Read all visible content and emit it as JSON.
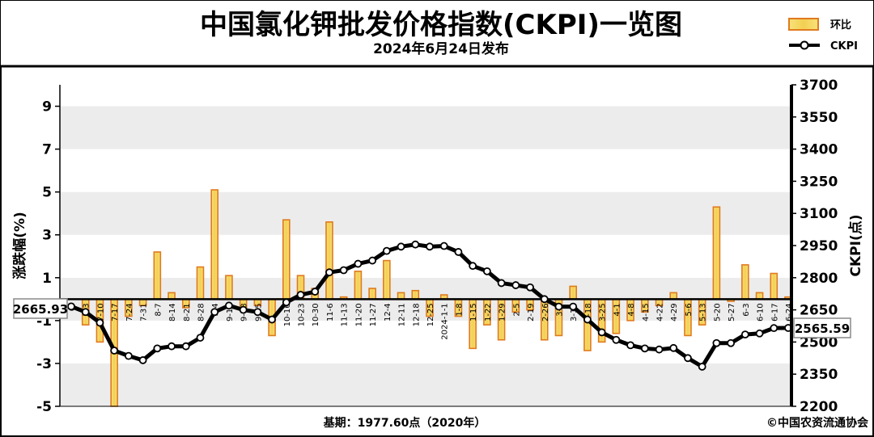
{
  "chart_data": {
    "type": "bar+line",
    "title": "中国氯化钾批发价格指数(CKPI)一览图",
    "subtitle": "2024年6月24日发布",
    "ylabel_left": "涨跌幅(%)",
    "ylabel_right": "CKPI(点)",
    "ylim_left": [
      -5,
      10
    ],
    "ylim_right": [
      2200,
      3700
    ],
    "yticks_left": [
      9,
      7,
      5,
      3,
      1,
      -1,
      -3,
      -5
    ],
    "yticks_right": [
      3700,
      3550,
      3400,
      3250,
      3100,
      2950,
      2800,
      2650,
      2500,
      2350,
      2200
    ],
    "legend": [
      {
        "label": "环比",
        "type": "bar"
      },
      {
        "label": "CKPI",
        "type": "line"
      }
    ],
    "categories": [
      "6-2x",
      "7-3",
      "7-10",
      "7-17",
      "7-24",
      "7-31",
      "8-7",
      "8-14",
      "8-21",
      "8-28",
      "9-4",
      "9-11",
      "9-18",
      "9-25",
      "10-9",
      "10-16",
      "10-23",
      "10-30",
      "11-6",
      "11-13",
      "11-20",
      "11-27",
      "12-4",
      "12-11",
      "12-18",
      "12-25",
      "2024-1-1",
      "1-8",
      "1-15",
      "1-22",
      "1-29",
      "2-5",
      "2-19",
      "2-26",
      "3-4",
      "3-11",
      "3-18",
      "3-25",
      "4-1",
      "4-8",
      "4-15",
      "4-22",
      "4-29",
      "5-6",
      "5-13",
      "5-20",
      "5-27",
      "6-3",
      "6-10",
      "6-17",
      "6-24"
    ],
    "x_labels_shown": [
      "6-",
      "7-3",
      "7-10",
      "7-17",
      "7-24",
      "7-31",
      "8-7",
      "8-14",
      "8-21",
      "8-28",
      "9-4",
      "9-11",
      "9-18",
      "9-25",
      "10-16",
      "10-23",
      "10-30",
      "11-6",
      "11-13",
      "11-20",
      "11-27",
      "12-4",
      "12-11",
      "12-18",
      "12-25",
      "2024-1-1",
      "1-8",
      "1-15",
      "1-22",
      "1-29",
      "2-5",
      "2-19",
      "2-26",
      "3-4",
      "3-11",
      "3-18",
      "3-25",
      "4-1",
      "4-8",
      "4-15",
      "4-22",
      "4-29",
      "5-6",
      "5-13",
      "5-20",
      "5-27",
      "6-3",
      "6-10",
      "6-17",
      "6-24"
    ],
    "series": [
      {
        "name": "环比",
        "type": "bar",
        "values": [
          0,
          -1.2,
          -2.0,
          -5.0,
          -0.8,
          -0.3,
          2.2,
          0.3,
          -0.4,
          1.5,
          5.1,
          1.1,
          -0.5,
          -0.3,
          -1.7,
          3.7,
          1.1,
          0.5,
          3.6,
          0.1,
          1.3,
          0.5,
          1.8,
          0.3,
          0.4,
          -0.8,
          0.2,
          -0.8,
          -2.3,
          -1.2,
          -1.9,
          -0.6,
          -0.5,
          -1.9,
          -1.7,
          0.6,
          -2.4,
          -2.0,
          -1.6,
          -1.0,
          -0.6,
          -0.3,
          0.3,
          -1.7,
          -1.2,
          4.3,
          -0.1,
          1.6,
          0.3,
          1.2,
          0.1
        ]
      },
      {
        "name": "CKPI",
        "type": "line",
        "values": [
          2665.93,
          2640,
          2590,
          2460,
          2435,
          2415,
          2470,
          2480,
          2480,
          2520,
          2640,
          2670,
          2650,
          2640,
          2605,
          2685,
          2720,
          2735,
          2825,
          2835,
          2865,
          2880,
          2925,
          2945,
          2955,
          2945,
          2948,
          2920,
          2855,
          2830,
          2775,
          2765,
          2755,
          2700,
          2665,
          2665,
          2605,
          2545,
          2510,
          2485,
          2470,
          2465,
          2472,
          2425,
          2385,
          2495,
          2495,
          2535,
          2540,
          2565,
          2565.59
        ]
      }
    ],
    "callouts": {
      "start": "2665.93",
      "end": "2565.59"
    },
    "grid": true,
    "legend_position": "top-right",
    "colors": {
      "bar_fill": "#f2d35c",
      "bar_stroke": "#e07a1f",
      "line": "#000000",
      "band": "#ececec"
    }
  },
  "footer": {
    "base_period": "基期：1977.60点（2020年）",
    "copyright": "©中国农资流通协会"
  }
}
